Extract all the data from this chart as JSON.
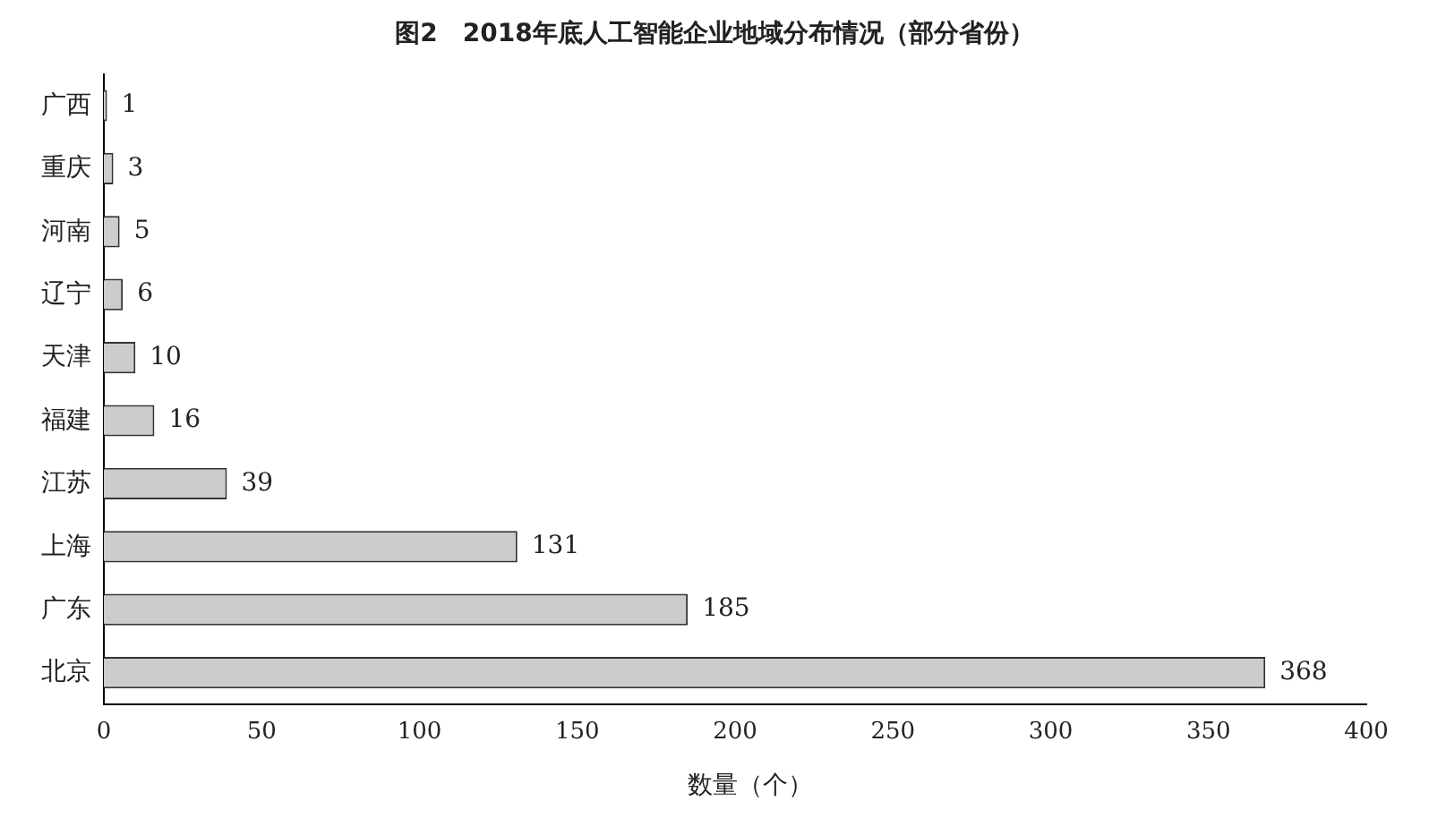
{
  "chart_data": {
    "type": "bar",
    "orientation": "horizontal",
    "title": "图2　2018年底人工智能企业地域分布情况（部分省份）",
    "xlabel": "数量（个）",
    "categories": [
      "广西",
      "重庆",
      "河南",
      "辽宁",
      "天津",
      "福建",
      "江苏",
      "上海",
      "广东",
      "北京"
    ],
    "values": [
      1,
      3,
      5,
      6,
      10,
      16,
      39,
      131,
      185,
      368
    ],
    "color": "#cccccc",
    "xlim": [
      0,
      400
    ],
    "xticks": [
      0,
      50,
      100,
      150,
      200,
      250,
      300,
      350,
      400
    ],
    "grid": false,
    "legend": false,
    "data_labels": true
  }
}
